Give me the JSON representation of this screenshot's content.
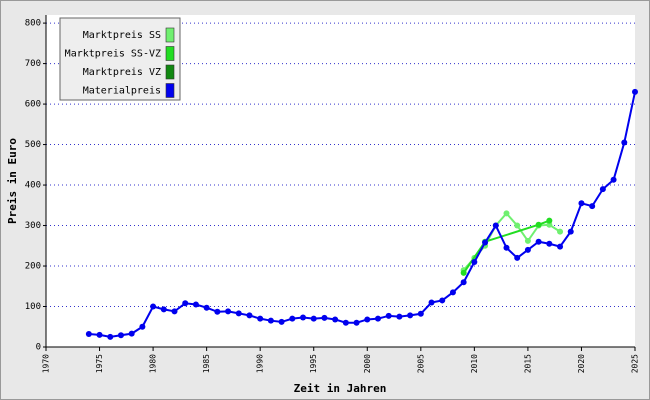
{
  "chart_data": {
    "type": "line",
    "xlabel": "Zeit in Jahren",
    "ylabel": "Preis in Euro",
    "xlim": [
      1970,
      2025
    ],
    "xticks": [
      1970,
      1975,
      1980,
      1985,
      1990,
      1995,
      2000,
      2005,
      2010,
      2015,
      2020,
      2025
    ],
    "ylim": [
      0,
      820
    ],
    "yticks": [
      0,
      100,
      200,
      300,
      400,
      500,
      600,
      700,
      800
    ],
    "grid": true,
    "legend": "top-left",
    "series": [
      {
        "name": "Marktpreis SS",
        "color": "#70f070",
        "x": [
          2009,
          2010,
          2011,
          2012,
          2013,
          2014,
          2015,
          2016,
          2017,
          2018
        ],
        "values": [
          190,
          220,
          250,
          300,
          330,
          300,
          262,
          300,
          302,
          285
        ]
      },
      {
        "name": "Marktpreis SS-VZ",
        "color": "#22dd22",
        "x": [
          2009,
          2011,
          2016,
          2017
        ],
        "values": [
          183,
          260,
          302,
          312
        ]
      },
      {
        "name": "Marktpreis VZ",
        "color": "#118811",
        "x": [],
        "values": []
      },
      {
        "name": "Materialpreis",
        "color": "#0000ee",
        "x": [
          1974,
          1975,
          1976,
          1977,
          1978,
          1979,
          1980,
          1981,
          1982,
          1983,
          1984,
          1985,
          1986,
          1987,
          1988,
          1989,
          1990,
          1991,
          1992,
          1993,
          1994,
          1995,
          1996,
          1997,
          1998,
          1999,
          2000,
          2001,
          2002,
          2003,
          2004,
          2005,
          2006,
          2007,
          2008,
          2009,
          2010,
          2011,
          2012,
          2013,
          2014,
          2015,
          2016,
          2017,
          2018,
          2019,
          2020,
          2021,
          2022,
          2023,
          2024,
          2025
        ],
        "values": [
          32,
          30,
          25,
          29,
          33,
          50,
          100,
          93,
          88,
          108,
          105,
          97,
          87,
          88,
          83,
          78,
          70,
          65,
          62,
          70,
          73,
          70,
          72,
          68,
          60,
          60,
          68,
          70,
          77,
          75,
          78,
          82,
          110,
          115,
          135,
          160,
          210,
          258,
          300,
          245,
          220,
          240,
          260,
          255,
          248,
          285,
          355,
          348,
          390,
          413,
          505,
          630
        ]
      }
    ]
  }
}
